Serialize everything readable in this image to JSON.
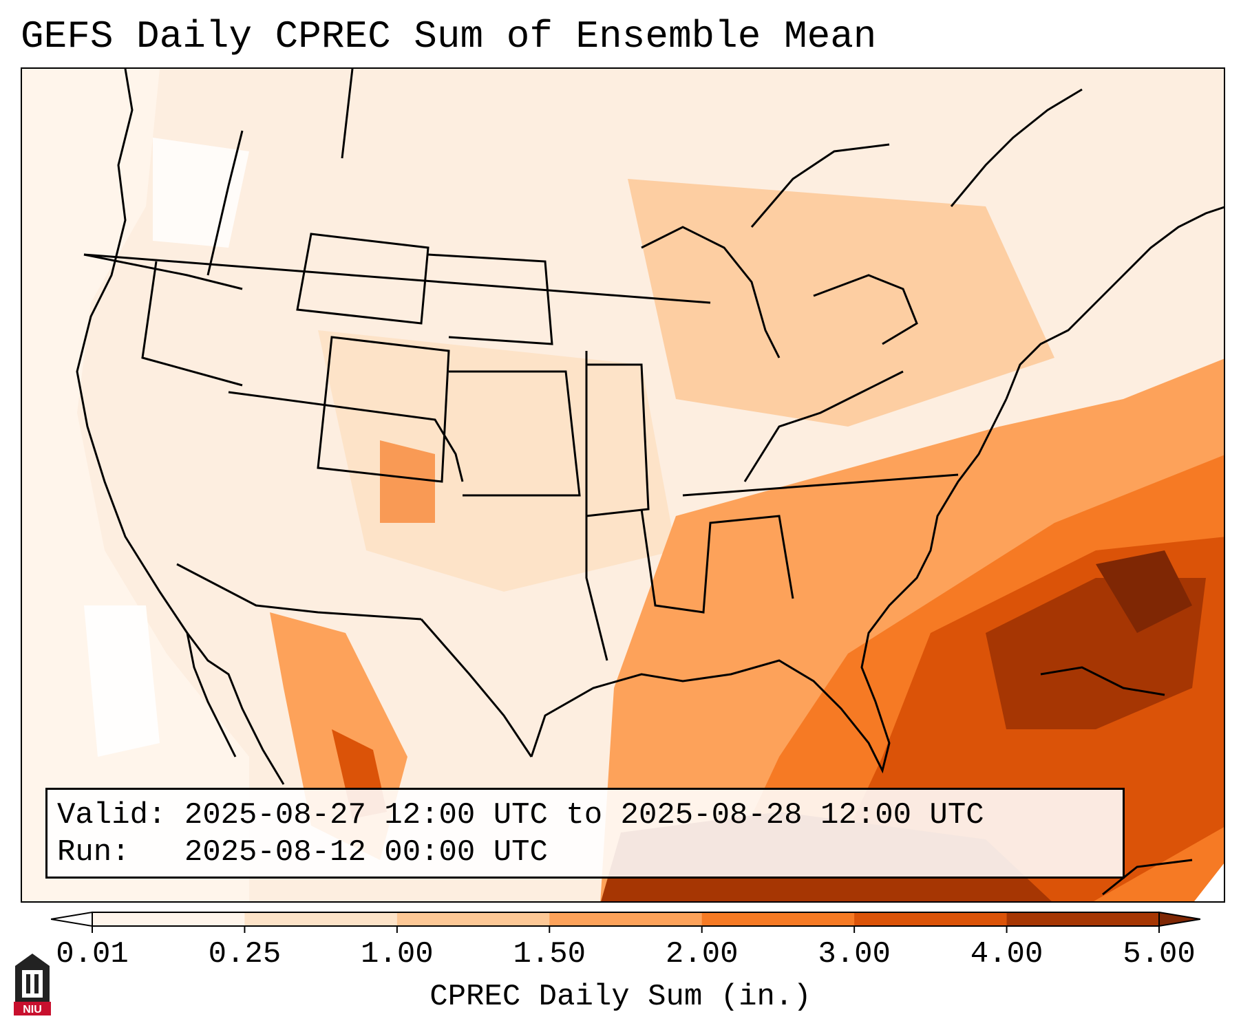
{
  "title": "GEFS Daily CPREC Sum of Ensemble Mean",
  "info": {
    "valid_label": "Valid:",
    "valid_value": "2025-08-27 12:00 UTC to 2025-08-28 12:00 UTC",
    "run_label": "Run:",
    "run_value": "2025-08-12 00:00 UTC"
  },
  "colorbar": {
    "label": "CPREC Daily Sum (in.)",
    "ticks": [
      "0.01",
      "0.25",
      "1.00",
      "1.50",
      "2.00",
      "3.00",
      "4.00",
      "5.00"
    ],
    "colors": [
      "#fff5eb",
      "#fde3c8",
      "#fdc896",
      "#fda25a",
      "#f67a24",
      "#db5308",
      "#a63603"
    ],
    "under_color": "#ffffff",
    "over_color": "#7f2704"
  },
  "logo": {
    "text": "NIU",
    "color": "#c8102e"
  },
  "icons": {
    "logo": "niu-logo-icon"
  }
}
